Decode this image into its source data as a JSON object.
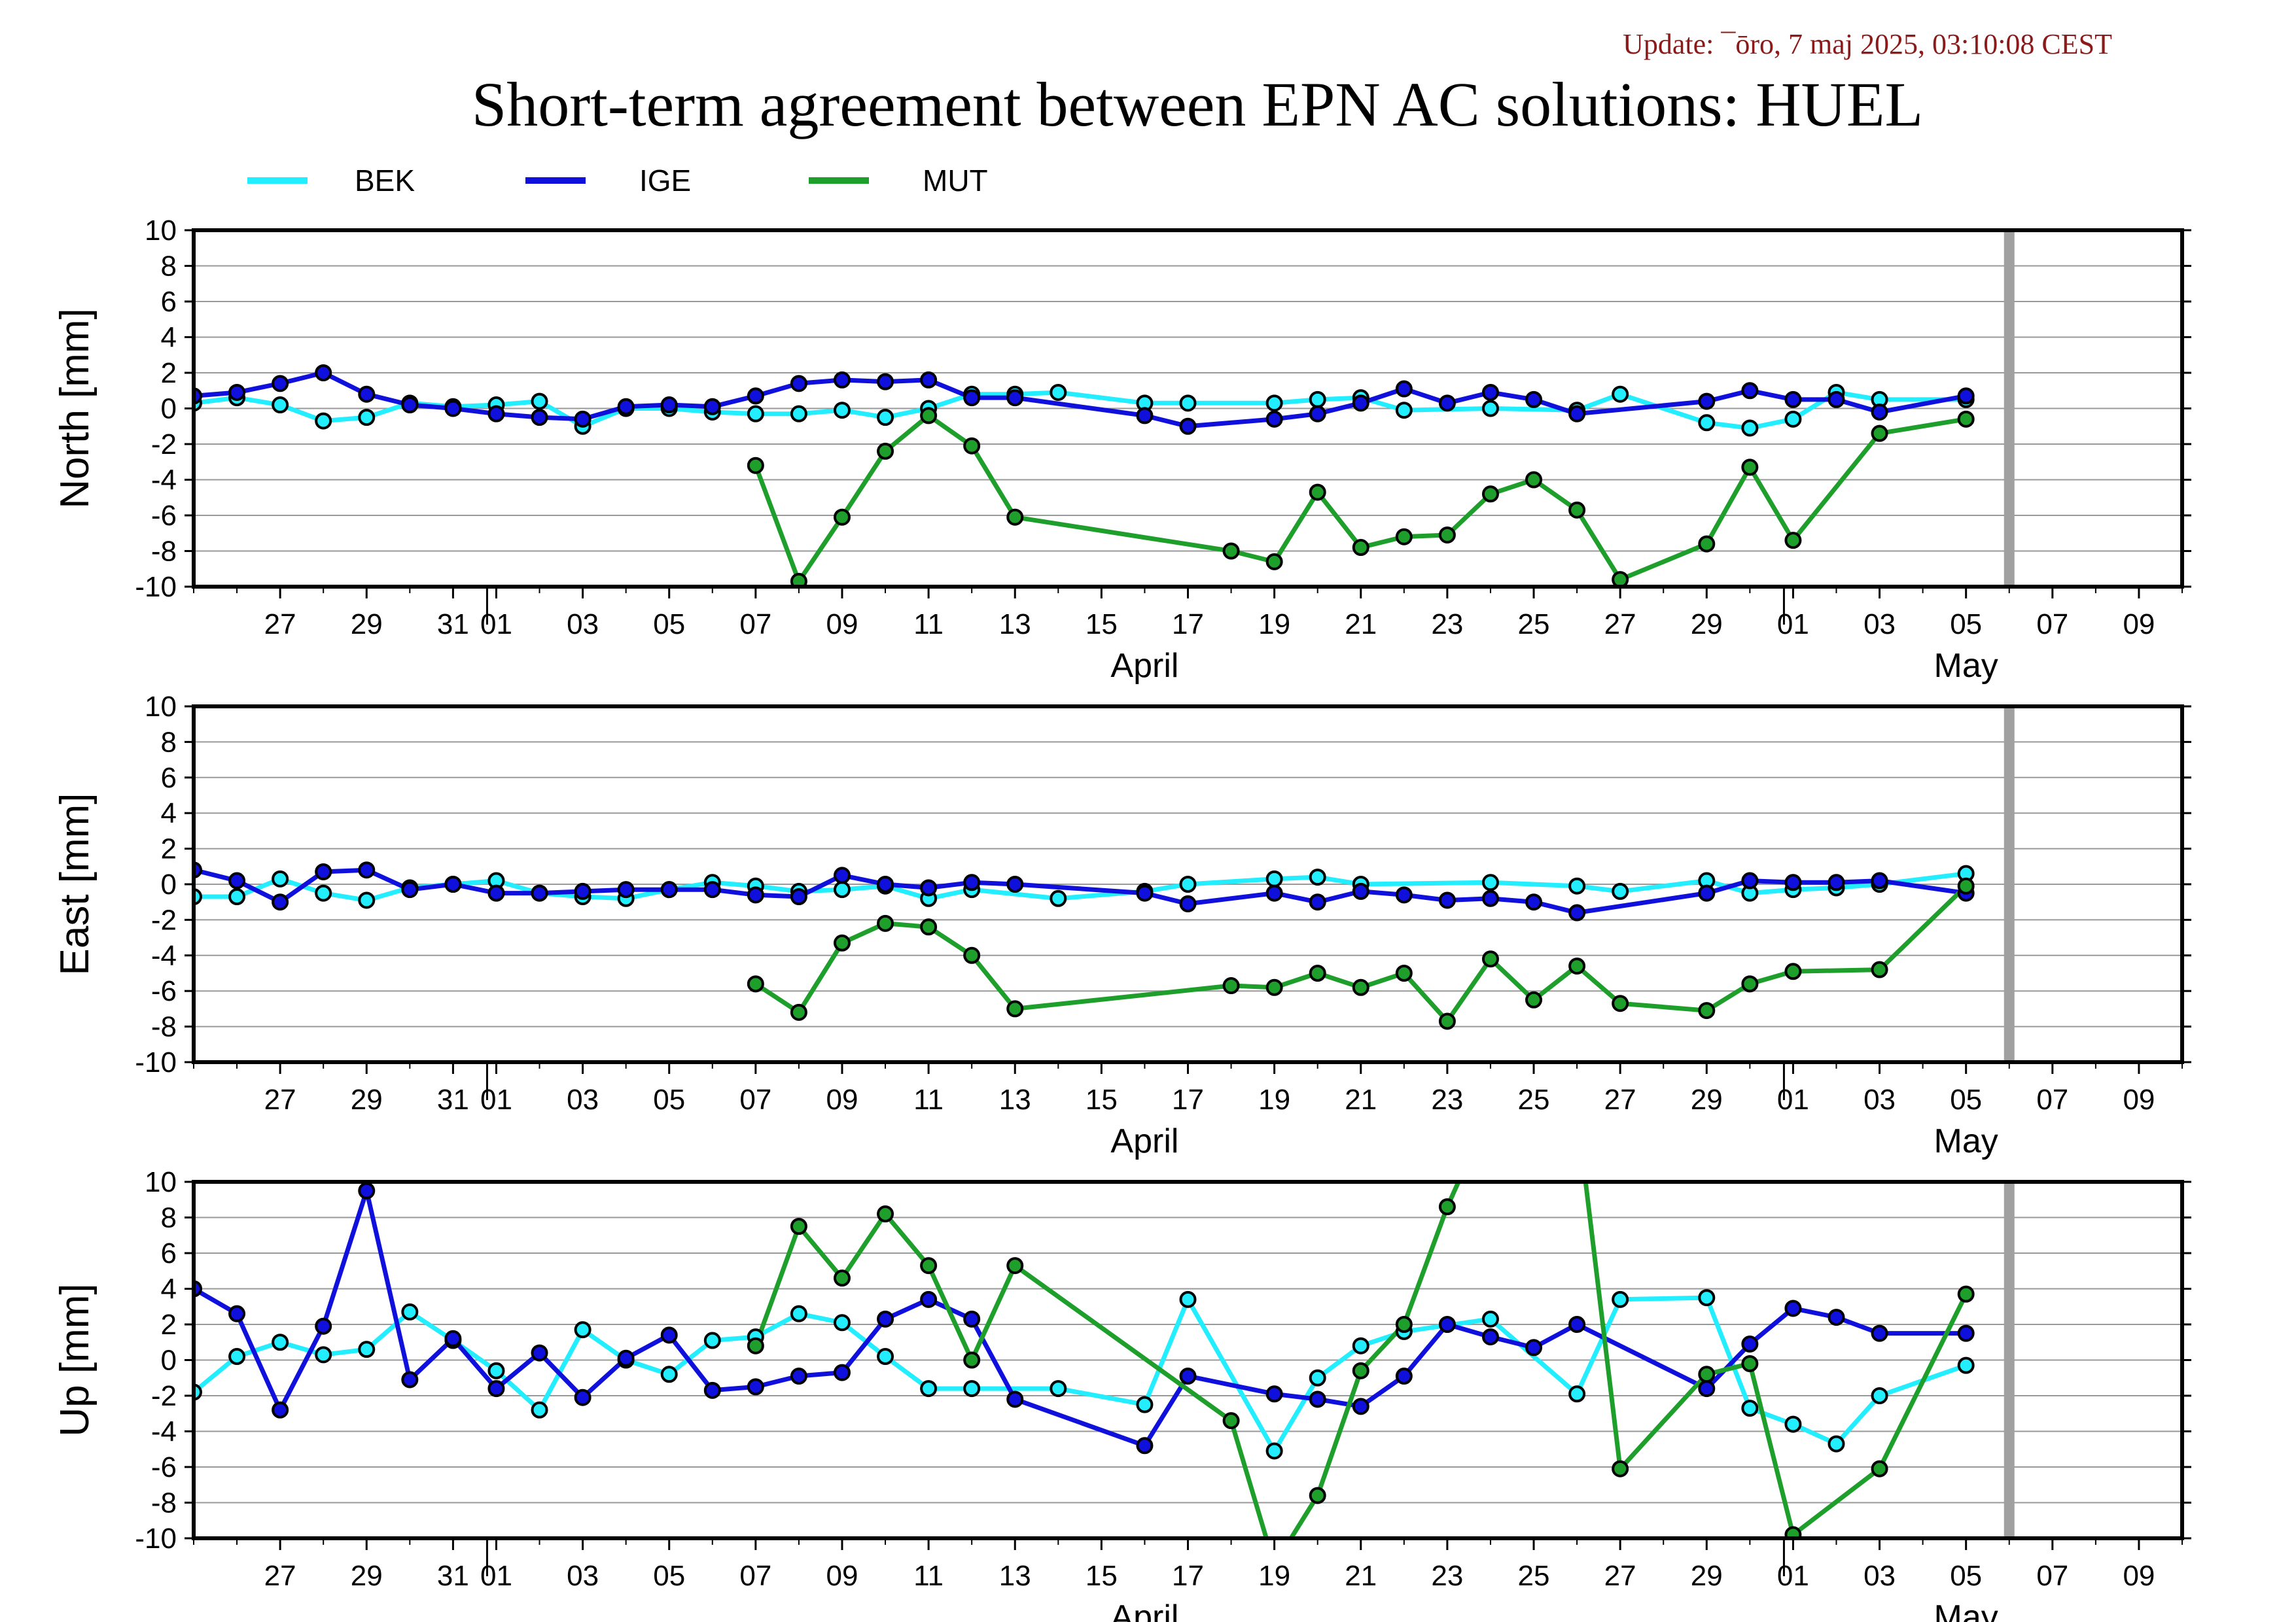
{
  "header": {
    "update": "Update: ¯ōro, 7 maj 2025, 03:10:08 CEST",
    "title": "Short-term agreement between EPN AC solutions: HUEL"
  },
  "legend": [
    {
      "name": "BEK",
      "color": "#22eeff"
    },
    {
      "name": "IGE",
      "color": "#1010dd"
    },
    {
      "name": "MUT",
      "color": "#1e9e2a"
    }
  ],
  "colors": {
    "grid": "#999999",
    "frame": "#000000",
    "today_bar": "#a0a0a0"
  },
  "x_axis": {
    "start": "2025-03-25",
    "end": "2025-05-10",
    "today_marker": "2025-05-06",
    "day_ticks": [
      {
        "date": "2025-03-27",
        "label": "27"
      },
      {
        "date": "2025-03-29",
        "label": "29"
      },
      {
        "date": "2025-03-31",
        "label": "31"
      },
      {
        "date": "2025-04-01",
        "label": "01"
      },
      {
        "date": "2025-04-03",
        "label": "03"
      },
      {
        "date": "2025-04-05",
        "label": "05"
      },
      {
        "date": "2025-04-07",
        "label": "07"
      },
      {
        "date": "2025-04-09",
        "label": "09"
      },
      {
        "date": "2025-04-11",
        "label": "11"
      },
      {
        "date": "2025-04-13",
        "label": "13"
      },
      {
        "date": "2025-04-15",
        "label": "15"
      },
      {
        "date": "2025-04-17",
        "label": "17"
      },
      {
        "date": "2025-04-19",
        "label": "19"
      },
      {
        "date": "2025-04-21",
        "label": "21"
      },
      {
        "date": "2025-04-23",
        "label": "23"
      },
      {
        "date": "2025-04-25",
        "label": "25"
      },
      {
        "date": "2025-04-27",
        "label": "27"
      },
      {
        "date": "2025-04-29",
        "label": "29"
      },
      {
        "date": "2025-05-01",
        "label": "01"
      },
      {
        "date": "2025-05-03",
        "label": "03"
      },
      {
        "date": "2025-05-05",
        "label": "05"
      },
      {
        "date": "2025-05-07",
        "label": "07"
      },
      {
        "date": "2025-05-09",
        "label": "09"
      }
    ],
    "month_boundaries": [
      "2025-04-01",
      "2025-05-01"
    ],
    "months": [
      {
        "label": "April",
        "date": "2025-04-16"
      },
      {
        "label": "May",
        "date": "2025-05-05"
      }
    ]
  },
  "chart_data": [
    {
      "type": "line",
      "ylabel": "North [mm]",
      "ylim": [
        -10,
        10
      ],
      "yticks": [
        10,
        8,
        6,
        4,
        2,
        0,
        -2,
        -4,
        -6,
        -8,
        -10
      ],
      "grid": true,
      "series": [
        {
          "name": "BEK",
          "x": [
            "2025-03-25",
            "2025-03-26",
            "2025-03-27",
            "2025-03-28",
            "2025-03-29",
            "2025-03-30",
            "2025-03-31",
            "2025-04-01",
            "2025-04-02",
            "2025-04-03",
            "2025-04-04",
            "2025-04-05",
            "2025-04-06",
            "2025-04-07",
            "2025-04-08",
            "2025-04-09",
            "2025-04-10",
            "2025-04-11",
            "2025-04-12",
            "2025-04-13",
            "2025-04-14",
            "2025-04-16",
            "2025-04-17",
            "2025-04-19",
            "2025-04-20",
            "2025-04-21",
            "2025-04-22",
            "2025-04-24",
            "2025-04-26",
            "2025-04-27",
            "2025-04-29",
            "2025-04-30",
            "2025-05-01",
            "2025-05-02",
            "2025-05-03",
            "2025-05-05"
          ],
          "y": [
            0.3,
            0.6,
            0.2,
            -0.7,
            -0.5,
            0.3,
            0.1,
            0.2,
            0.4,
            -1.0,
            0.0,
            0.0,
            -0.2,
            -0.3,
            -0.3,
            -0.1,
            -0.5,
            0.0,
            0.8,
            0.8,
            0.9,
            0.3,
            0.3,
            0.3,
            0.5,
            0.6,
            -0.1,
            0.0,
            -0.1,
            0.8,
            -0.8,
            -1.1,
            -0.6,
            0.9,
            0.5,
            0.5
          ]
        },
        {
          "name": "IGE",
          "x": [
            "2025-03-25",
            "2025-03-26",
            "2025-03-27",
            "2025-03-28",
            "2025-03-29",
            "2025-03-30",
            "2025-03-31",
            "2025-04-01",
            "2025-04-02",
            "2025-04-03",
            "2025-04-04",
            "2025-04-05",
            "2025-04-06",
            "2025-04-07",
            "2025-04-08",
            "2025-04-09",
            "2025-04-10",
            "2025-04-11",
            "2025-04-12",
            "2025-04-13",
            "2025-04-16",
            "2025-04-17",
            "2025-04-19",
            "2025-04-20",
            "2025-04-21",
            "2025-04-22",
            "2025-04-23",
            "2025-04-24",
            "2025-04-25",
            "2025-04-26",
            "2025-04-29",
            "2025-04-30",
            "2025-05-01",
            "2025-05-02",
            "2025-05-03",
            "2025-05-05"
          ],
          "y": [
            0.7,
            0.9,
            1.4,
            2.0,
            0.8,
            0.2,
            0.0,
            -0.3,
            -0.5,
            -0.6,
            0.1,
            0.2,
            0.1,
            0.7,
            1.4,
            1.6,
            1.5,
            1.6,
            0.6,
            0.6,
            -0.4,
            -1.0,
            -0.6,
            -0.3,
            0.3,
            1.1,
            0.3,
            0.9,
            0.5,
            -0.3,
            0.4,
            1.0,
            0.5,
            0.5,
            -0.2,
            0.7
          ]
        },
        {
          "name": "MUT",
          "x": [
            "2025-04-07",
            "2025-04-08",
            "2025-04-09",
            "2025-04-10",
            "2025-04-11",
            "2025-04-12",
            "2025-04-13",
            "2025-04-18",
            "2025-04-19",
            "2025-04-20",
            "2025-04-21",
            "2025-04-22",
            "2025-04-23",
            "2025-04-24",
            "2025-04-25",
            "2025-04-26",
            "2025-04-27",
            "2025-04-29",
            "2025-04-30",
            "2025-05-01",
            "2025-05-03",
            "2025-05-05"
          ],
          "y": [
            -3.2,
            -9.7,
            -6.1,
            -2.4,
            -0.4,
            -2.1,
            -6.1,
            -8.0,
            -8.6,
            -4.7,
            -7.8,
            -7.2,
            -7.1,
            -4.8,
            -4.0,
            -5.7,
            -9.6,
            -7.6,
            -3.3,
            -7.4,
            -1.4,
            -0.6
          ]
        }
      ]
    },
    {
      "type": "line",
      "ylabel": "East [mm]",
      "ylim": [
        -10,
        10
      ],
      "yticks": [
        10,
        8,
        6,
        4,
        2,
        0,
        -2,
        -4,
        -6,
        -8,
        -10
      ],
      "grid": true,
      "series": [
        {
          "name": "BEK",
          "x": [
            "2025-03-25",
            "2025-03-26",
            "2025-03-27",
            "2025-03-28",
            "2025-03-29",
            "2025-03-30",
            "2025-03-31",
            "2025-04-01",
            "2025-04-02",
            "2025-04-03",
            "2025-04-04",
            "2025-04-05",
            "2025-04-06",
            "2025-04-07",
            "2025-04-08",
            "2025-04-09",
            "2025-04-10",
            "2025-04-11",
            "2025-04-12",
            "2025-04-14",
            "2025-04-16",
            "2025-04-17",
            "2025-04-19",
            "2025-04-20",
            "2025-04-21",
            "2025-04-24",
            "2025-04-26",
            "2025-04-27",
            "2025-04-29",
            "2025-04-30",
            "2025-05-01",
            "2025-05-02",
            "2025-05-03",
            "2025-05-05"
          ],
          "y": [
            -0.7,
            -0.7,
            0.3,
            -0.5,
            -0.9,
            -0.2,
            0.0,
            0.2,
            -0.5,
            -0.7,
            -0.8,
            -0.3,
            0.1,
            -0.1,
            -0.4,
            -0.3,
            -0.1,
            -0.8,
            -0.3,
            -0.8,
            -0.4,
            0.0,
            0.3,
            0.4,
            0.0,
            0.1,
            -0.1,
            -0.4,
            0.2,
            -0.5,
            -0.3,
            -0.2,
            0.0,
            0.6
          ]
        },
        {
          "name": "IGE",
          "x": [
            "2025-03-25",
            "2025-03-26",
            "2025-03-27",
            "2025-03-28",
            "2025-03-29",
            "2025-03-30",
            "2025-03-31",
            "2025-04-01",
            "2025-04-02",
            "2025-04-03",
            "2025-04-04",
            "2025-04-05",
            "2025-04-06",
            "2025-04-07",
            "2025-04-08",
            "2025-04-09",
            "2025-04-10",
            "2025-04-11",
            "2025-04-12",
            "2025-04-13",
            "2025-04-16",
            "2025-04-17",
            "2025-04-19",
            "2025-04-20",
            "2025-04-21",
            "2025-04-22",
            "2025-04-23",
            "2025-04-24",
            "2025-04-25",
            "2025-04-26",
            "2025-04-29",
            "2025-04-30",
            "2025-05-01",
            "2025-05-02",
            "2025-05-03",
            "2025-05-05"
          ],
          "y": [
            0.8,
            0.2,
            -1.0,
            0.7,
            0.8,
            -0.3,
            0.0,
            -0.5,
            -0.5,
            -0.4,
            -0.3,
            -0.3,
            -0.3,
            -0.6,
            -0.7,
            0.5,
            0.0,
            -0.2,
            0.1,
            0.0,
            -0.5,
            -1.1,
            -0.5,
            -1.0,
            -0.4,
            -0.6,
            -0.9,
            -0.8,
            -1.0,
            -1.6,
            -0.5,
            0.2,
            0.1,
            0.1,
            0.2,
            -0.5
          ]
        },
        {
          "name": "MUT",
          "x": [
            "2025-04-07",
            "2025-04-08",
            "2025-04-09",
            "2025-04-10",
            "2025-04-11",
            "2025-04-12",
            "2025-04-13",
            "2025-04-18",
            "2025-04-19",
            "2025-04-20",
            "2025-04-21",
            "2025-04-22",
            "2025-04-23",
            "2025-04-24",
            "2025-04-25",
            "2025-04-26",
            "2025-04-27",
            "2025-04-29",
            "2025-04-30",
            "2025-05-01",
            "2025-05-03",
            "2025-05-05"
          ],
          "y": [
            -5.6,
            -7.2,
            -3.3,
            -2.2,
            -2.4,
            -4.0,
            -7.0,
            -5.7,
            -5.8,
            -5.0,
            -5.8,
            -5.0,
            -7.7,
            -4.2,
            -6.5,
            -4.6,
            -6.7,
            -7.1,
            -5.6,
            -4.9,
            -4.8,
            -0.1
          ]
        }
      ]
    },
    {
      "type": "line",
      "ylabel": "Up [mm]",
      "ylim": [
        -10,
        10
      ],
      "yticks": [
        10,
        8,
        6,
        4,
        2,
        0,
        -2,
        -4,
        -6,
        -8,
        -10
      ],
      "grid": true,
      "series": [
        {
          "name": "BEK",
          "x": [
            "2025-03-25",
            "2025-03-26",
            "2025-03-27",
            "2025-03-28",
            "2025-03-29",
            "2025-03-30",
            "2025-03-31",
            "2025-04-01",
            "2025-04-02",
            "2025-04-03",
            "2025-04-04",
            "2025-04-05",
            "2025-04-06",
            "2025-04-07",
            "2025-04-08",
            "2025-04-09",
            "2025-04-10",
            "2025-04-11",
            "2025-04-12",
            "2025-04-14",
            "2025-04-16",
            "2025-04-17",
            "2025-04-19",
            "2025-04-20",
            "2025-04-21",
            "2025-04-22",
            "2025-04-24",
            "2025-04-26",
            "2025-04-27",
            "2025-04-29",
            "2025-04-30",
            "2025-05-01",
            "2025-05-02",
            "2025-05-03",
            "2025-05-05"
          ],
          "y": [
            -1.8,
            0.2,
            1.0,
            0.3,
            0.6,
            2.7,
            1.1,
            -0.6,
            -2.8,
            1.7,
            0.0,
            -0.8,
            1.1,
            1.3,
            2.6,
            2.1,
            0.2,
            -1.6,
            -1.6,
            -1.6,
            -2.5,
            3.4,
            -5.1,
            -1.0,
            0.8,
            1.6,
            2.3,
            -1.9,
            3.4,
            3.5,
            -2.7,
            -3.6,
            -4.7,
            -2.0,
            -0.3
          ]
        },
        {
          "name": "IGE",
          "x": [
            "2025-03-25",
            "2025-03-26",
            "2025-03-27",
            "2025-03-28",
            "2025-03-29",
            "2025-03-30",
            "2025-03-31",
            "2025-04-01",
            "2025-04-02",
            "2025-04-03",
            "2025-04-04",
            "2025-04-05",
            "2025-04-06",
            "2025-04-07",
            "2025-04-08",
            "2025-04-09",
            "2025-04-10",
            "2025-04-11",
            "2025-04-12",
            "2025-04-13",
            "2025-04-16",
            "2025-04-17",
            "2025-04-19",
            "2025-04-20",
            "2025-04-21",
            "2025-04-22",
            "2025-04-23",
            "2025-04-24",
            "2025-04-25",
            "2025-04-26",
            "2025-04-29",
            "2025-04-30",
            "2025-05-01",
            "2025-05-02",
            "2025-05-03",
            "2025-05-05"
          ],
          "y": [
            4.0,
            2.6,
            -2.8,
            1.9,
            9.5,
            -1.1,
            1.2,
            -1.6,
            0.4,
            -2.1,
            0.1,
            1.4,
            -1.7,
            -1.5,
            -0.9,
            -0.7,
            2.3,
            3.4,
            2.3,
            -2.2,
            -4.8,
            -0.9,
            -1.9,
            -2.2,
            -2.6,
            -0.9,
            2.0,
            1.3,
            0.7,
            2.0,
            -1.6,
            0.9,
            2.9,
            2.4,
            1.5,
            1.5
          ]
        },
        {
          "name": "MUT",
          "x": [
            "2025-04-07",
            "2025-04-08",
            "2025-04-09",
            "2025-04-10",
            "2025-04-11",
            "2025-04-12",
            "2025-04-13",
            "2025-04-18",
            "2025-04-19",
            "2025-04-20",
            "2025-04-21",
            "2025-04-22",
            "2025-04-23",
            "2025-04-24",
            "2025-04-26",
            "2025-04-27",
            "2025-04-29",
            "2025-04-30",
            "2025-05-01",
            "2025-05-03",
            "2025-05-05"
          ],
          "y": [
            0.8,
            7.5,
            4.6,
            8.2,
            5.3,
            0.0,
            5.3,
            -3.4,
            -11.5,
            -7.6,
            -0.6,
            2.0,
            8.6,
            14.0,
            14.0,
            -6.1,
            -0.8,
            -0.2,
            -9.8,
            -6.1,
            3.7
          ]
        }
      ]
    }
  ]
}
